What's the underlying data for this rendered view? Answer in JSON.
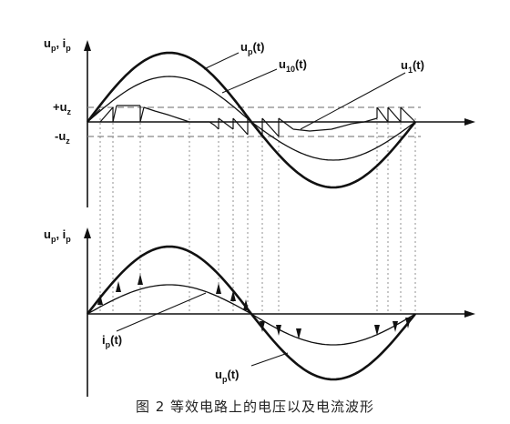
{
  "top_panel": {
    "axis_label": {
      "base": [
        "u",
        ", i"
      ],
      "subs": [
        "p",
        "p"
      ]
    },
    "plus_uz": {
      "base": "+u",
      "sub": "z"
    },
    "minus_uz": {
      "base": "-u",
      "sub": "z"
    },
    "up_label": {
      "base": "u",
      "sub": "p",
      "suffix": "(t)"
    },
    "u10_label": {
      "base": "u",
      "sub": "10",
      "suffix": "(t)"
    },
    "u1_label": {
      "base": "u",
      "sub": "1",
      "suffix": "(t)"
    }
  },
  "bottom_panel": {
    "axis_label": {
      "base": [
        "u",
        ", i"
      ],
      "subs": [
        "p",
        "p"
      ]
    },
    "ip_label": {
      "base": "i",
      "sub": "p",
      "suffix": "(t)"
    },
    "up_label": {
      "base": "u",
      "sub": "p",
      "suffix": "(t)"
    }
  },
  "caption": "图 2  等效电路上的电压以及电流波形",
  "colors": {
    "ink": "#111111",
    "dashed": "#888888",
    "guide": "#777777"
  }
}
